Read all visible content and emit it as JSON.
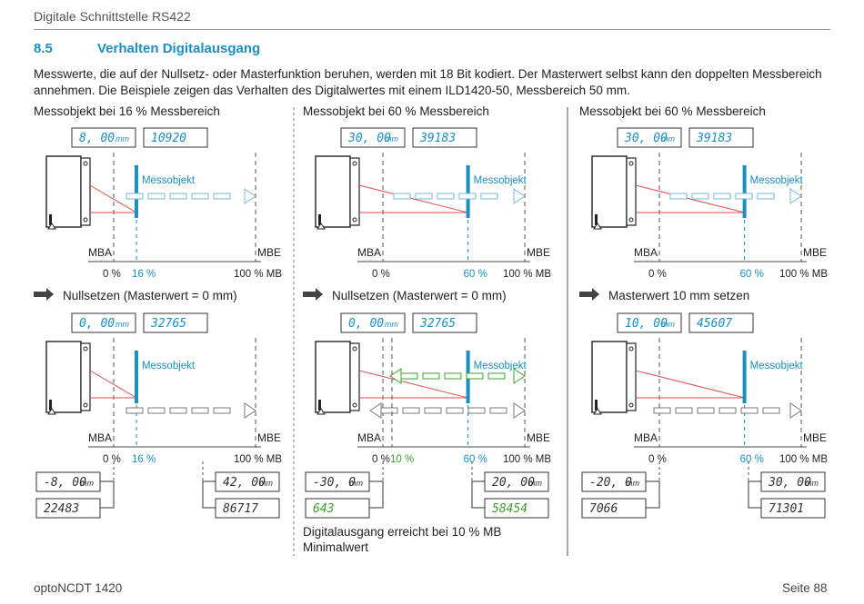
{
  "header": {
    "title": "Digitale Schnittstelle RS422"
  },
  "section": {
    "number": "8.5",
    "title": "Verhalten Digitalausgang"
  },
  "intro": "Messwerte, die auf der Nullsetz- oder Masterfunktion beruhen, werden mit 18 Bit kodiert. Der Masterwert selbst kann den doppelten Messbereich annehmen. Die Beispiele zeigen das Verhalten des Digitalwertes mit einem ILD1420-50, Messbereich 50 mm.",
  "columns": [
    {
      "title": "Messobjekt bei 16 % Messbereich",
      "top": {
        "lcd_value": "8, 00",
        "lcd_unit": "mm",
        "lcd_digital": "10920",
        "object_label": "Messobjekt",
        "mba": "MBA",
        "mbe": "MBE",
        "pct0": "0 %",
        "pct_obj": "16 %",
        "pct100": "100 % MB"
      },
      "step": "Nullsetzen (Masterwert = 0 mm)",
      "bottom": {
        "lcd_value": "0, 00",
        "lcd_unit": "mm",
        "lcd_digital": "32765",
        "object_label": "Messobjekt",
        "mba": "MBA",
        "mbe": "MBE",
        "pct0": "0 %",
        "pct_obj": "16 %",
        "pct100": "100 % MB"
      },
      "readouts": {
        "left_value": "-8, 00",
        "left_unit": "mm",
        "left_digital": "22483",
        "right_value": "42, 00",
        "right_unit": "mm",
        "right_digital": "86717"
      }
    },
    {
      "title": "Messobjekt bei 60 % Messbereich",
      "top": {
        "lcd_value": "30, 00",
        "lcd_unit": "mm",
        "lcd_digital": "39183",
        "object_label": "Messobjekt",
        "mba": "MBA",
        "mbe": "MBE",
        "pct0": "0 %",
        "pct_obj": "60 %",
        "pct100": "100 % MB"
      },
      "step": "Nullsetzen (Masterwert = 0 mm)",
      "bottom": {
        "lcd_value": "0, 00",
        "lcd_unit": "mm",
        "lcd_digital": "32765",
        "object_label": "Messobjekt",
        "mba": "MBA",
        "mbe": "MBE",
        "pct0": "0 %",
        "pct_mid": "10 %",
        "pct_obj": "60 %",
        "pct100": "100 % MB"
      },
      "readouts": {
        "left_value": "-30, 0",
        "left_unit": "mm",
        "left_digital": "643",
        "right_value": "20, 00",
        "right_unit": "mm",
        "right_digital": "58454"
      },
      "note": [
        "Digitalausgang erreicht bei 10 % MB",
        "Minimalwert"
      ]
    },
    {
      "title": "Messobjekt bei 60 % Messbereich",
      "top": {
        "lcd_value": "30, 00",
        "lcd_unit": "mm",
        "lcd_digital": "39183",
        "object_label": "Messobjekt",
        "mba": "MBA",
        "mbe": "MBE",
        "pct0": "0 %",
        "pct_obj": "60 %",
        "pct100": "100 % MB"
      },
      "step": "Masterwert 10 mm setzen",
      "bottom": {
        "lcd_value": "10, 00",
        "lcd_unit": "mm",
        "lcd_digital": "45607",
        "object_label": "Messobjekt",
        "mba": "MBA",
        "mbe": "MBE",
        "pct0": "0 %",
        "pct_obj": "60 %",
        "pct100": "100 % MB"
      },
      "readouts": {
        "left_value": "-20, 0",
        "left_unit": "mm",
        "left_digital": "7066",
        "right_value": "30, 00",
        "right_unit": "mm",
        "right_digital": "71301"
      }
    }
  ],
  "colors": {
    "accent": "#1a8fc0",
    "laser": "#d9534f",
    "arrow": "#7ab8d8",
    "green": "#3aa02a",
    "lcd_text": "#1a8fc0"
  },
  "footer": {
    "left": "optoNCDT 1420",
    "right": "Seite 88"
  }
}
